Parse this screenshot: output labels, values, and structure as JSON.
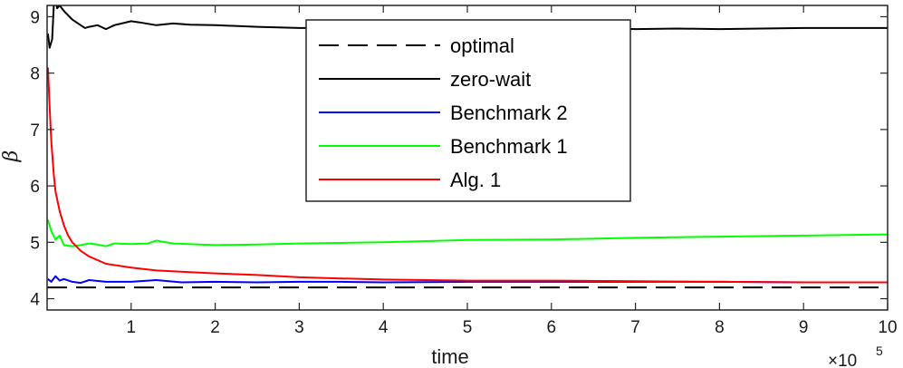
{
  "chart_data": {
    "type": "line",
    "title": "",
    "xlabel": "time",
    "ylabel": "β",
    "x_multiplier": {
      "base": "×10",
      "exponent": "5"
    },
    "xlim": [
      0,
      10
    ],
    "ylim": [
      3.8,
      9.2
    ],
    "xticks": [
      1,
      2,
      3,
      4,
      5,
      6,
      7,
      8,
      9,
      10
    ],
    "xtick_labels": [
      "1",
      "2",
      "3",
      "4",
      "5",
      "6",
      "7",
      "8",
      "9",
      "10"
    ],
    "yticks": [
      4,
      5,
      6,
      7,
      8,
      9
    ],
    "ytick_labels": [
      "4",
      "5",
      "6",
      "7",
      "8",
      "9"
    ],
    "grid": false,
    "legend_position": "top-center",
    "series": [
      {
        "name": "optimal",
        "color": "#000000",
        "dash": "dashed",
        "x": [
          0,
          10
        ],
        "y": [
          4.2,
          4.2
        ]
      },
      {
        "name": "zero-wait",
        "color": "#000000",
        "dash": "solid",
        "x": [
          0.01,
          0.03,
          0.06,
          0.08,
          0.1,
          0.12,
          0.15,
          0.2,
          0.3,
          0.4,
          0.45,
          0.5,
          0.6,
          0.7,
          0.8,
          1.0,
          1.1,
          1.3,
          1.5,
          1.7,
          2.0,
          2.5,
          3.0,
          3.5,
          4.0,
          4.5,
          5.0,
          5.5,
          6.0,
          6.5,
          7.0,
          7.5,
          8.0,
          8.5,
          9.0,
          9.5,
          10.0
        ],
        "y": [
          8.7,
          8.45,
          8.6,
          9.2,
          9.3,
          9.15,
          9.2,
          9.1,
          8.95,
          8.85,
          8.8,
          8.82,
          8.85,
          8.78,
          8.85,
          8.92,
          8.9,
          8.85,
          8.88,
          8.86,
          8.85,
          8.82,
          8.8,
          8.8,
          8.79,
          8.8,
          8.8,
          8.79,
          8.79,
          8.8,
          8.78,
          8.79,
          8.78,
          8.79,
          8.8,
          8.8,
          8.8
        ]
      },
      {
        "name": "Benchmark 2",
        "color": "#0000ff",
        "dash": "solid",
        "x": [
          0.01,
          0.05,
          0.1,
          0.15,
          0.2,
          0.3,
          0.4,
          0.5,
          0.7,
          1.0,
          1.3,
          1.6,
          2.0,
          2.5,
          3.0,
          3.5,
          4.0,
          5.0,
          6.0,
          7.0,
          8.0,
          9.0,
          10.0
        ],
        "y": [
          4.35,
          4.3,
          4.4,
          4.32,
          4.35,
          4.3,
          4.28,
          4.33,
          4.3,
          4.3,
          4.33,
          4.29,
          4.3,
          4.29,
          4.3,
          4.3,
          4.29,
          4.3,
          4.3,
          4.3,
          4.3,
          4.29,
          4.29
        ]
      },
      {
        "name": "Benchmark 1",
        "color": "#00ff00",
        "dash": "solid",
        "x": [
          0.01,
          0.05,
          0.1,
          0.15,
          0.2,
          0.3,
          0.4,
          0.5,
          0.6,
          0.7,
          0.8,
          1.0,
          1.2,
          1.3,
          1.5,
          2.0,
          2.5,
          3.0,
          4.0,
          5.0,
          6.0,
          7.0,
          8.0,
          9.0,
          10.0
        ],
        "y": [
          5.4,
          5.2,
          5.05,
          5.12,
          4.95,
          4.93,
          4.95,
          4.98,
          4.96,
          4.93,
          4.98,
          4.97,
          4.98,
          5.03,
          4.98,
          4.95,
          4.96,
          4.98,
          5.0,
          5.04,
          5.05,
          5.08,
          5.1,
          5.12,
          5.14
        ]
      },
      {
        "name": "Alg. 1",
        "color": "#ff0000",
        "dash": "solid",
        "x": [
          0.01,
          0.03,
          0.05,
          0.08,
          0.1,
          0.15,
          0.2,
          0.25,
          0.3,
          0.4,
          0.5,
          0.7,
          1.0,
          1.3,
          1.7,
          2.0,
          2.5,
          3.0,
          3.5,
          4.0,
          4.5,
          5.0,
          6.0,
          7.0,
          8.0,
          9.0,
          10.0
        ],
        "y": [
          8.1,
          7.4,
          6.8,
          6.2,
          5.9,
          5.55,
          5.3,
          5.12,
          5.0,
          4.85,
          4.75,
          4.62,
          4.55,
          4.5,
          4.47,
          4.45,
          4.42,
          4.38,
          4.36,
          4.34,
          4.33,
          4.32,
          4.32,
          4.31,
          4.3,
          4.29,
          4.29
        ]
      }
    ],
    "legend_order": [
      "optimal",
      "zero-wait",
      "Benchmark 2",
      "Benchmark 1",
      "Alg. 1"
    ]
  }
}
